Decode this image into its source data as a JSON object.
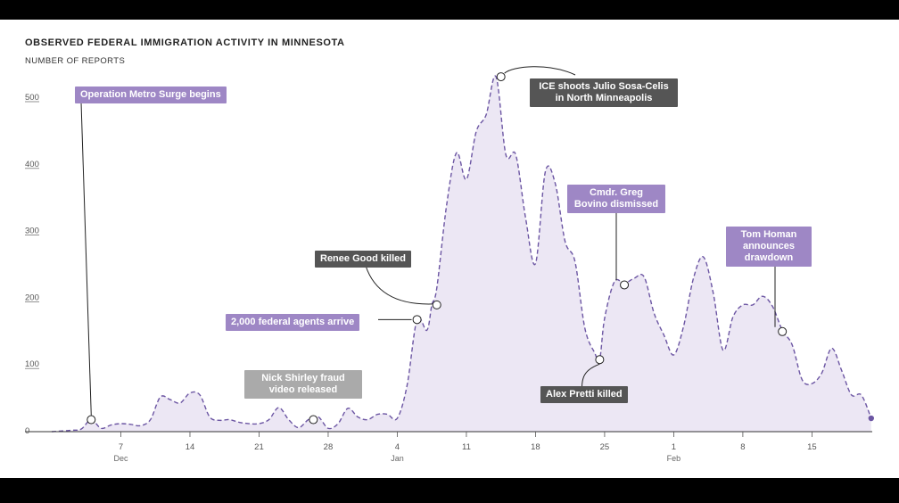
{
  "title": "OBSERVED FEDERAL IMMIGRATION ACTIVITY IN MINNESOTA",
  "subtitle": "NUMBER OF REPORTS",
  "colors": {
    "line": "#6c56a3",
    "area": "#ece7f4",
    "purple_label": "#9e87c5",
    "dark_label": "#555555",
    "light_label": "#aaaaaa"
  },
  "chart_data": {
    "type": "area",
    "title": "OBSERVED FEDERAL IMMIGRATION ACTIVITY IN MINNESOTA",
    "ylabel": "NUMBER OF REPORTS",
    "xlabel": "",
    "ylim": [
      0,
      540
    ],
    "yticks": [
      0,
      100,
      200,
      300,
      400,
      500
    ],
    "x_start": "Dec 1",
    "x_end": "Feb 21",
    "xticks": [
      {
        "day": 7,
        "label": "7",
        "month": "Dec"
      },
      {
        "day": 14,
        "label": "14",
        "month": ""
      },
      {
        "day": 21,
        "label": "21",
        "month": ""
      },
      {
        "day": 28,
        "label": "28",
        "month": ""
      },
      {
        "day": 35,
        "label": "4",
        "month": "Jan"
      },
      {
        "day": 42,
        "label": "11",
        "month": ""
      },
      {
        "day": 49,
        "label": "18",
        "month": ""
      },
      {
        "day": 56,
        "label": "25",
        "month": ""
      },
      {
        "day": 63,
        "label": "1",
        "month": "Feb"
      },
      {
        "day": 70,
        "label": "8",
        "month": ""
      },
      {
        "day": 77,
        "label": "15",
        "month": ""
      }
    ],
    "series": [
      {
        "name": "",
        "points": [
          [
            0,
            0
          ],
          [
            2,
            2
          ],
          [
            3,
            4
          ],
          [
            4,
            18
          ],
          [
            5,
            5
          ],
          [
            6,
            10
          ],
          [
            7,
            12
          ],
          [
            8,
            11
          ],
          [
            9,
            9
          ],
          [
            10,
            18
          ],
          [
            11,
            52
          ],
          [
            12,
            48
          ],
          [
            13,
            43
          ],
          [
            14,
            58
          ],
          [
            15,
            55
          ],
          [
            16,
            22
          ],
          [
            17,
            17
          ],
          [
            18,
            18
          ],
          [
            19,
            14
          ],
          [
            20,
            12
          ],
          [
            21,
            12
          ],
          [
            22,
            18
          ],
          [
            23,
            36
          ],
          [
            24,
            18
          ],
          [
            25,
            6
          ],
          [
            26,
            18
          ],
          [
            27,
            22
          ],
          [
            28,
            5
          ],
          [
            29,
            12
          ],
          [
            30,
            35
          ],
          [
            31,
            22
          ],
          [
            32,
            18
          ],
          [
            33,
            26
          ],
          [
            34,
            26
          ],
          [
            35,
            20
          ],
          [
            36,
            70
          ],
          [
            37,
            168
          ],
          [
            38,
            152
          ],
          [
            38.5,
            190
          ],
          [
            39,
            215
          ],
          [
            40,
            340
          ],
          [
            41,
            418
          ],
          [
            42,
            378
          ],
          [
            43,
            450
          ],
          [
            44,
            475
          ],
          [
            45,
            532
          ],
          [
            46,
            415
          ],
          [
            47,
            415
          ],
          [
            48,
            320
          ],
          [
            49,
            252
          ],
          [
            50,
            390
          ],
          [
            51,
            372
          ],
          [
            52,
            285
          ],
          [
            53,
            255
          ],
          [
            54,
            155
          ],
          [
            55,
            118
          ],
          [
            55.5,
            108
          ],
          [
            56,
            170
          ],
          [
            57,
            225
          ],
          [
            58,
            222
          ],
          [
            59,
            230
          ],
          [
            60,
            232
          ],
          [
            61,
            178
          ],
          [
            62,
            145
          ],
          [
            63,
            115
          ],
          [
            64,
            158
          ],
          [
            65,
            230
          ],
          [
            66,
            262
          ],
          [
            67,
            208
          ],
          [
            68,
            122
          ],
          [
            69,
            172
          ],
          [
            70,
            190
          ],
          [
            71,
            190
          ],
          [
            72,
            203
          ],
          [
            73,
            188
          ],
          [
            74,
            152
          ],
          [
            75,
            130
          ],
          [
            76,
            78
          ],
          [
            77,
            72
          ],
          [
            78,
            88
          ],
          [
            79,
            125
          ],
          [
            80,
            92
          ],
          [
            81,
            55
          ],
          [
            82,
            55
          ],
          [
            83,
            20
          ]
        ]
      }
    ],
    "annotations": [
      {
        "text": "Operation Metro Surge begins",
        "day": 4,
        "value": 18,
        "style": "purple"
      },
      {
        "text": "Nick Shirley fraud video released",
        "day": 26.5,
        "value": 18,
        "style": "light"
      },
      {
        "text": "2,000 federal agents arrive",
        "day": 37,
        "value": 168,
        "style": "purple"
      },
      {
        "text": "Renee Good killed",
        "day": 39,
        "value": 190,
        "style": "dark"
      },
      {
        "text": "ICE shoots Julio Sosa-Celis in North Minneapolis",
        "day": 45.5,
        "value": 532,
        "style": "dark"
      },
      {
        "text": "Alex Pretti killed",
        "day": 55.5,
        "value": 108,
        "style": "dark"
      },
      {
        "text": "Cmdr. Greg Bovino dismissed",
        "day": 58,
        "value": 220,
        "style": "purple"
      },
      {
        "text": "Tom Homan announces drawdown",
        "day": 74,
        "value": 150,
        "style": "purple"
      }
    ]
  }
}
